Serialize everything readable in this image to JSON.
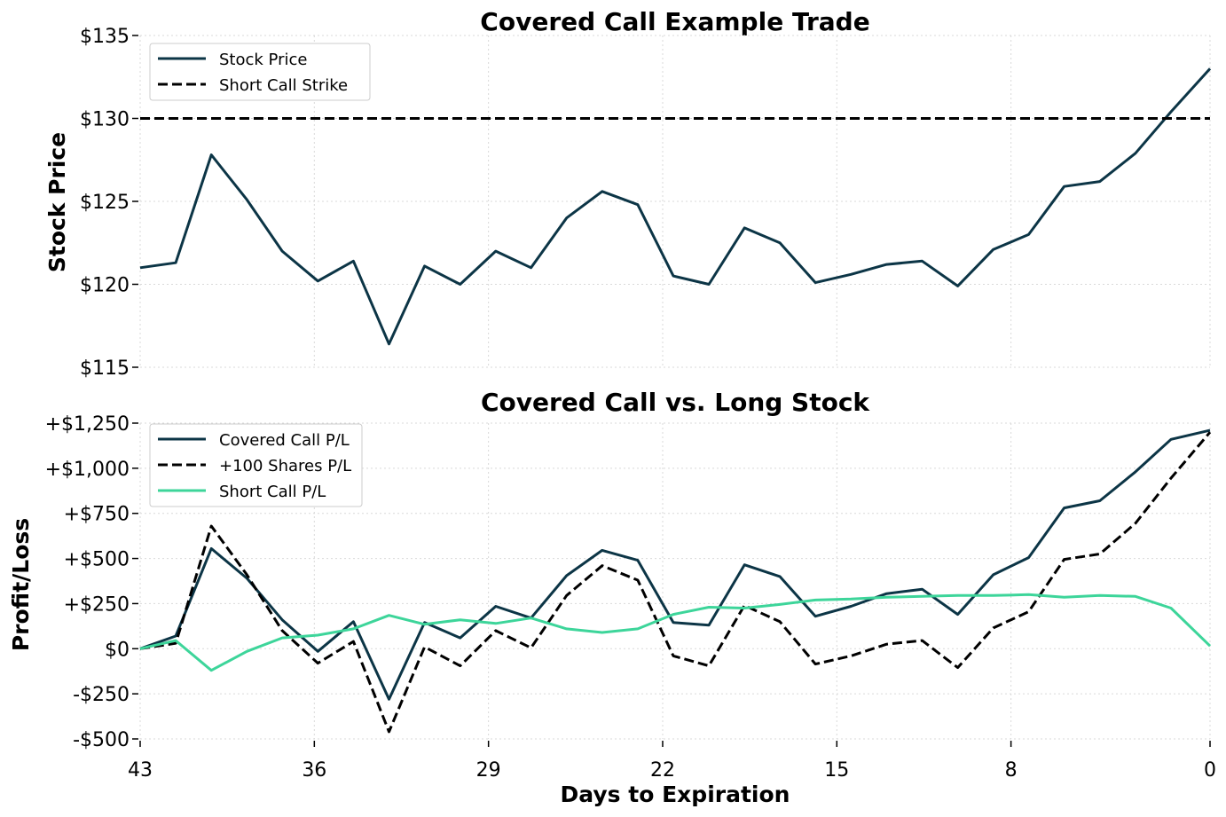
{
  "chart_data": [
    {
      "type": "line",
      "title": "Covered Call Example Trade",
      "xlabel": "",
      "ylabel": "Stock Price",
      "xlim": [
        43,
        0
      ],
      "ylim": [
        115,
        135
      ],
      "x_ticks": [
        43,
        36,
        29,
        22,
        15,
        8,
        0
      ],
      "x_tick_labels": [
        "",
        "",
        "",
        "",
        "",
        "",
        ""
      ],
      "y_ticks": [
        115,
        120,
        125,
        130,
        135
      ],
      "y_tick_labels": [
        "$115",
        "$120",
        "$125",
        "$130",
        "$135"
      ],
      "grid": true,
      "legend_position": "top-left",
      "x": [
        43,
        41.57,
        40.14,
        38.71,
        37.29,
        35.86,
        34.43,
        33,
        31.57,
        30.14,
        28.71,
        27.29,
        25.86,
        24.43,
        23,
        21.57,
        20.14,
        18.71,
        17.29,
        15.86,
        14.43,
        13,
        11.57,
        10.14,
        8.71,
        7.29,
        5.86,
        4.43,
        3,
        1.57,
        0
      ],
      "series": [
        {
          "name": "Stock Price",
          "color": "#0c3546",
          "style": "solid",
          "values": [
            121.0,
            121.3,
            127.8,
            125.1,
            122.0,
            120.2,
            121.4,
            116.4,
            121.1,
            120.0,
            122.0,
            121.0,
            124.0,
            125.6,
            124.8,
            120.5,
            120.0,
            123.4,
            122.5,
            120.1,
            120.6,
            121.2,
            121.4,
            119.9,
            122.1,
            123.0,
            125.9,
            126.2,
            127.9,
            130.4,
            133.0
          ]
        },
        {
          "name": "Short Call Strike",
          "color": "#000000",
          "style": "dashed",
          "values": [
            130,
            130,
            130,
            130,
            130,
            130,
            130,
            130,
            130,
            130,
            130,
            130,
            130,
            130,
            130,
            130,
            130,
            130,
            130,
            130,
            130,
            130,
            130,
            130,
            130,
            130,
            130,
            130,
            130,
            130,
            130
          ]
        }
      ]
    },
    {
      "type": "line",
      "title": "Covered Call vs. Long Stock",
      "xlabel": "Days to Expiration",
      "ylabel": "Profit/Loss",
      "xlim": [
        43,
        0
      ],
      "ylim": [
        -500,
        1250
      ],
      "x_ticks": [
        43,
        36,
        29,
        22,
        15,
        8,
        0
      ],
      "x_tick_labels": [
        "43",
        "36",
        "29",
        "22",
        "15",
        "8",
        "0"
      ],
      "y_ticks": [
        -500,
        -250,
        0,
        250,
        500,
        750,
        1000,
        1250
      ],
      "y_tick_labels": [
        "-$500",
        "-$250",
        "$0",
        "+$250",
        "+$500",
        "+$750",
        "+$1,000",
        "+$1,250"
      ],
      "grid": true,
      "legend_position": "top-left",
      "x": [
        43,
        41.57,
        40.14,
        38.71,
        37.29,
        35.86,
        34.43,
        33,
        31.57,
        30.14,
        28.71,
        27.29,
        25.86,
        24.43,
        23,
        21.57,
        20.14,
        18.71,
        17.29,
        15.86,
        14.43,
        13,
        11.57,
        10.14,
        8.71,
        7.29,
        5.86,
        4.43,
        3,
        1.57,
        0
      ],
      "series": [
        {
          "name": "Covered Call P/L",
          "color": "#0c3546",
          "style": "solid",
          "values": [
            0,
            70,
            555,
            390,
            160,
            -15,
            150,
            -280,
            145,
            60,
            235,
            170,
            405,
            545,
            490,
            145,
            130,
            465,
            400,
            180,
            235,
            305,
            330,
            190,
            410,
            505,
            780,
            820,
            980,
            1160,
            1210
          ]
        },
        {
          "name": "+100 Shares P/L",
          "color": "#000000",
          "style": "dashed",
          "values": [
            0,
            30,
            680,
            410,
            100,
            -80,
            40,
            -460,
            10,
            -95,
            100,
            5,
            295,
            460,
            380,
            -40,
            -95,
            240,
            150,
            -85,
            -40,
            25,
            45,
            -105,
            115,
            205,
            495,
            525,
            695,
            945,
            1200
          ]
        },
        {
          "name": "Short Call P/L",
          "color": "#3dd59a",
          "style": "solid",
          "values": [
            0,
            45,
            -120,
            -15,
            60,
            75,
            110,
            185,
            135,
            160,
            140,
            170,
            110,
            90,
            110,
            190,
            230,
            225,
            245,
            270,
            275,
            285,
            290,
            295,
            295,
            300,
            285,
            295,
            290,
            225,
            15
          ]
        }
      ]
    }
  ]
}
